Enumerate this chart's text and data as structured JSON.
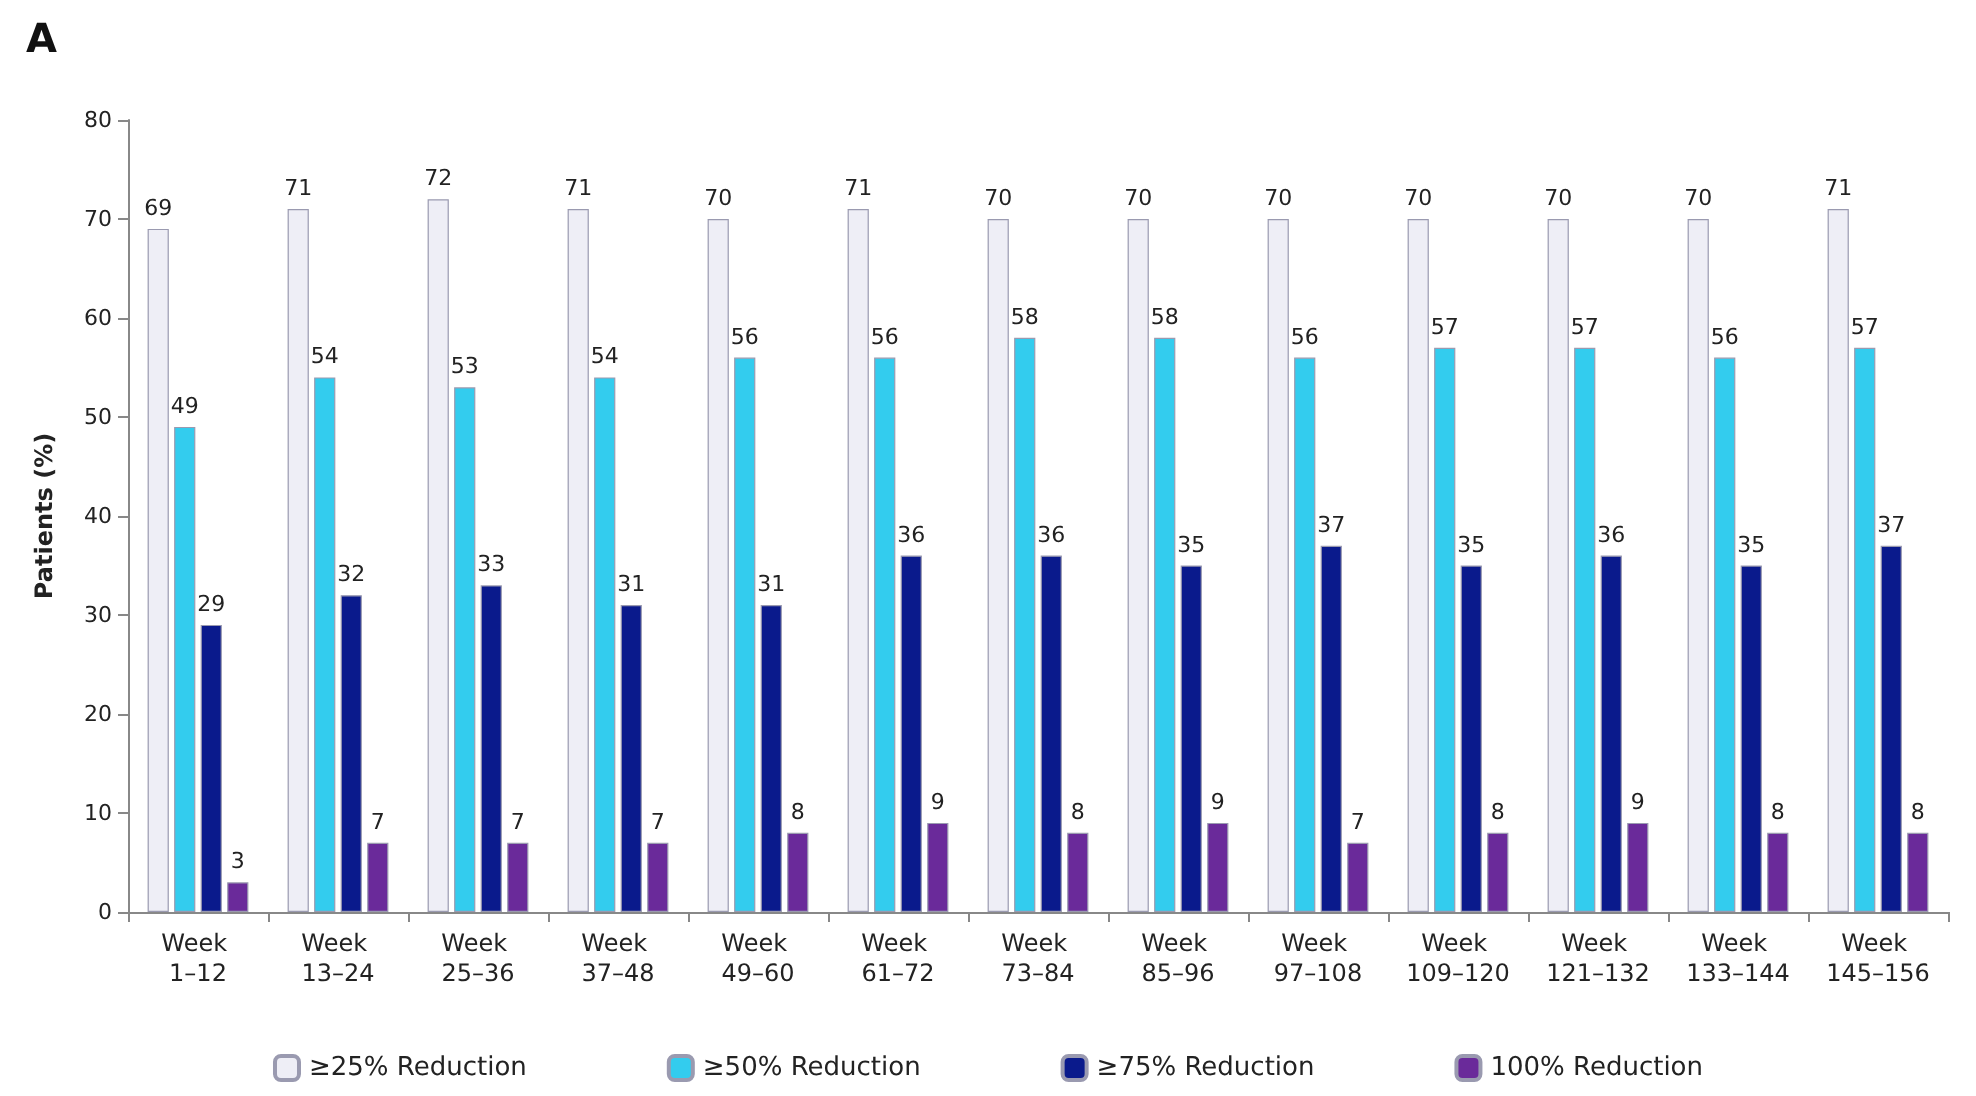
{
  "chart_data": {
    "type": "bar",
    "title": "A",
    "ylabel": "Patients (%)",
    "categories": [
      "Week 1–12",
      "Week 13–24",
      "Week 25–36",
      "Week 37–48",
      "Week 49–60",
      "Week 61–72",
      "Week 73–84",
      "Week 85–96",
      "Week 97–108",
      "Week 109–120",
      "Week 121–132",
      "Week 133–144",
      "Week 145–156"
    ],
    "series": [
      {
        "name": "≥25% Reduction",
        "color": "#eeeef6",
        "values": [
          69,
          71,
          72,
          71,
          70,
          71,
          70,
          70,
          70,
          70,
          70,
          70,
          71
        ]
      },
      {
        "name": "≥50% Reduction",
        "color": "#33ccee",
        "values": [
          49,
          54,
          53,
          54,
          56,
          56,
          58,
          58,
          56,
          57,
          57,
          56,
          57
        ]
      },
      {
        "name": "≥75% Reduction",
        "color": "#0a1a8c",
        "values": [
          29,
          32,
          33,
          31,
          31,
          36,
          36,
          35,
          37,
          35,
          36,
          35,
          37
        ]
      },
      {
        "name": "100% Reduction",
        "color": "#6a2a9a",
        "values": [
          3,
          7,
          7,
          7,
          8,
          9,
          8,
          9,
          7,
          8,
          9,
          8,
          8
        ]
      }
    ],
    "ylim": [
      0,
      80
    ],
    "yticks": [
      0,
      10,
      20,
      30,
      40,
      50,
      60,
      70,
      80
    ],
    "data_labels": true,
    "grid": false,
    "legend": "bottom"
  }
}
